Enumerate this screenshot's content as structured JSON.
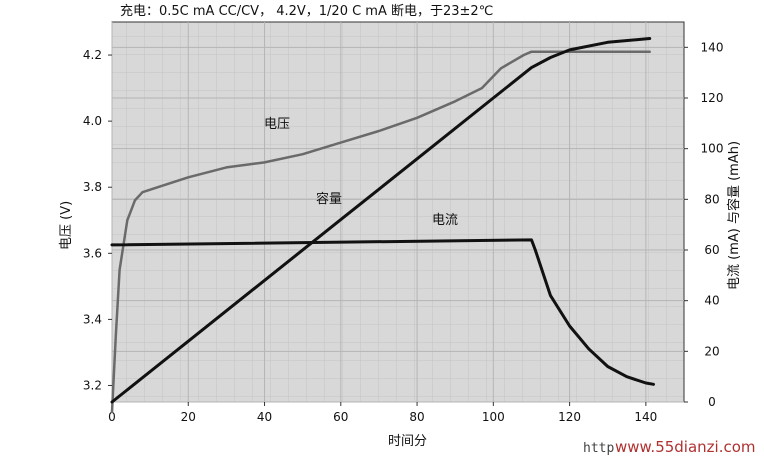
{
  "chart_data": {
    "type": "line",
    "title": "充电：0.5C mA CC/CV， 4.2V，1/20 C mA 断电，于23±2℃",
    "xlabel": "时间分",
    "ylabel_left": "电压 (V)",
    "ylabel_right": "电流 (mA) 与容量 (mAh)",
    "xlim": [
      0,
      150
    ],
    "ylim_left": [
      3.15,
      4.3
    ],
    "ylim_right": [
      0,
      150
    ],
    "x_ticks": [
      "0",
      "20",
      "40",
      "60",
      "80",
      "100",
      "120",
      "140"
    ],
    "y_left_ticks": [
      "3.2",
      "3.4",
      "3.6",
      "3.8",
      "4.0",
      "4.2"
    ],
    "y_right_ticks": [
      "0",
      "20",
      "40",
      "60",
      "80",
      "100",
      "120",
      "140"
    ],
    "grid": true,
    "series": [
      {
        "name": "电压",
        "axis": "left",
        "color": "#6a6a6a",
        "points": [
          [
            0,
            3.12
          ],
          [
            1,
            3.35
          ],
          [
            2,
            3.55
          ],
          [
            4,
            3.7
          ],
          [
            6,
            3.76
          ],
          [
            8,
            3.785
          ],
          [
            12,
            3.8
          ],
          [
            20,
            3.83
          ],
          [
            30,
            3.86
          ],
          [
            40,
            3.875
          ],
          [
            50,
            3.9
          ],
          [
            60,
            3.935
          ],
          [
            70,
            3.97
          ],
          [
            80,
            4.01
          ],
          [
            90,
            4.06
          ],
          [
            97,
            4.1
          ],
          [
            102,
            4.16
          ],
          [
            108,
            4.2
          ],
          [
            110,
            4.21
          ],
          [
            141,
            4.21
          ]
        ]
      },
      {
        "name": "容量",
        "axis": "right",
        "color": "#111111",
        "points": [
          [
            0,
            0
          ],
          [
            20,
            24
          ],
          [
            40,
            48
          ],
          [
            60,
            72
          ],
          [
            80,
            96
          ],
          [
            100,
            120
          ],
          [
            110,
            132
          ],
          [
            115,
            136
          ],
          [
            120,
            139
          ],
          [
            130,
            142
          ],
          [
            141,
            143.5
          ]
        ]
      },
      {
        "name": "电流",
        "axis": "right",
        "color": "#111111",
        "points": [
          [
            0,
            62
          ],
          [
            110,
            64
          ],
          [
            111,
            60
          ],
          [
            115,
            42
          ],
          [
            120,
            30
          ],
          [
            125,
            21
          ],
          [
            130,
            14
          ],
          [
            135,
            10
          ],
          [
            140,
            7.5
          ],
          [
            142,
            7
          ]
        ]
      }
    ]
  },
  "watermark": {
    "site": "www.55dianzi.com",
    "prefix": "http"
  }
}
